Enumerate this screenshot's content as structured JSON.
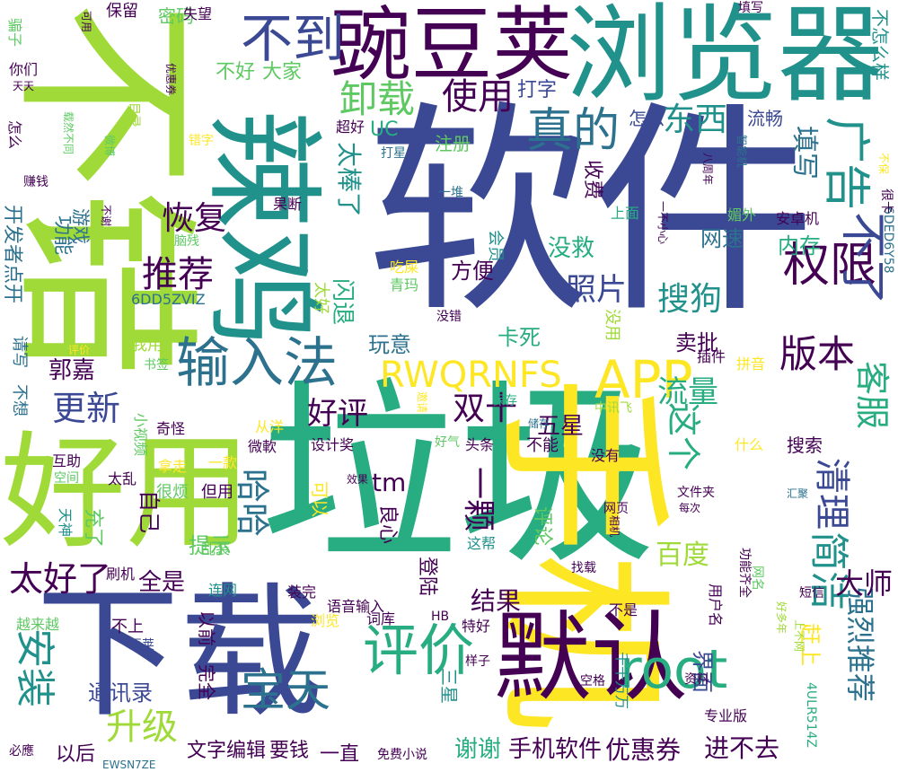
{
  "palette": {
    "dark_purple": "#440154",
    "indigo": "#3b4994",
    "steel_blue": "#2c728e",
    "teal": "#21918c",
    "sea_green": "#27ad81",
    "green": "#5ec962",
    "yellow_green": "#a0da39",
    "yellow": "#fde725"
  },
  "words": [
    {
      "text": "软件",
      "c": "indigo"
    },
    {
      "text": "垃圾",
      "c": "sea_green"
    },
    {
      "text": "手机",
      "c": "yellow"
    },
    {
      "text": "不错",
      "c": "yellow_green"
    },
    {
      "text": "下载",
      "c": "indigo"
    },
    {
      "text": "好用",
      "c": "yellow_green"
    },
    {
      "text": "浏览器",
      "c": "teal"
    },
    {
      "text": "豌豆荚",
      "c": "dark_purple"
    },
    {
      "text": "辣鸡",
      "c": "teal"
    },
    {
      "text": "默认",
      "c": "dark_purple"
    },
    {
      "text": "不到",
      "c": "indigo"
    },
    {
      "text": "评价",
      "c": "sea_green"
    },
    {
      "text": "输入法",
      "c": "steel_blue"
    },
    {
      "text": "宝天",
      "c": "steel_blue"
    },
    {
      "text": "root",
      "c": "sea_green"
    },
    {
      "text": "APP",
      "c": "yellow"
    },
    {
      "text": "RWQRNFS",
      "c": "yellow"
    },
    {
      "text": "权限",
      "c": "dark_purple"
    },
    {
      "text": "不了",
      "c": "indigo"
    },
    {
      "text": "广告",
      "c": "teal"
    },
    {
      "text": "真的",
      "c": "steel_blue"
    },
    {
      "text": "卸载",
      "c": "green"
    },
    {
      "text": "使用",
      "c": "dark_purple"
    },
    {
      "text": "版本",
      "c": "dark_purple"
    },
    {
      "text": "安装",
      "c": "teal"
    },
    {
      "text": "推荐",
      "c": "dark_purple"
    },
    {
      "text": "更新",
      "c": "indigo"
    },
    {
      "text": "太好了",
      "c": "dark_purple"
    },
    {
      "text": "清理",
      "c": "indigo"
    },
    {
      "text": "简洁",
      "c": "teal"
    },
    {
      "text": "强烈推荐",
      "c": "steel_blue"
    },
    {
      "text": "客服",
      "c": "sea_green"
    },
    {
      "text": "这个",
      "c": "sea_green"
    },
    {
      "text": "搜狗",
      "c": "teal"
    },
    {
      "text": "恢复",
      "c": "dark_purple"
    },
    {
      "text": "东西",
      "c": "teal"
    },
    {
      "text": "升级",
      "c": "yellow_green"
    },
    {
      "text": "哈哈",
      "c": "steel_blue"
    },
    {
      "text": "好评",
      "c": "dark_purple"
    },
    {
      "text": "双十",
      "c": "dark_purple"
    },
    {
      "text": "一颗",
      "c": "dark_purple"
    },
    {
      "text": "流量",
      "c": "sea_green"
    },
    {
      "text": "大师",
      "c": "dark_purple"
    },
    {
      "text": "填写",
      "c": "steel_blue"
    },
    {
      "text": "百度",
      "c": "yellow_green"
    },
    {
      "text": "照片",
      "c": "indigo"
    },
    {
      "text": "结果",
      "c": "dark_purple"
    },
    {
      "text": "手机软件",
      "c": "dark_purple"
    },
    {
      "text": "优惠券",
      "c": "dark_purple"
    },
    {
      "text": "进不去",
      "c": "dark_purple"
    },
    {
      "text": "谢谢",
      "c": "sea_green"
    },
    {
      "text": "文字编辑",
      "c": "dark_purple"
    },
    {
      "text": "要钱",
      "c": "dark_purple"
    },
    {
      "text": "一直",
      "c": "dark_purple"
    },
    {
      "text": "以后",
      "c": "dark_purple"
    },
    {
      "text": "通讯录",
      "c": "indigo"
    },
    {
      "text": "界面",
      "c": "indigo"
    },
    {
      "text": "赶上",
      "c": "yellow"
    },
    {
      "text": "tm",
      "c": "dark_purple"
    },
    {
      "text": "五星",
      "c": "dark_purple"
    },
    {
      "text": "郭嘉",
      "c": "dark_purple"
    },
    {
      "text": "玩意",
      "c": "steel_blue"
    },
    {
      "text": "卖批",
      "c": "dark_purple"
    },
    {
      "text": "方便",
      "c": "dark_purple"
    },
    {
      "text": "没救",
      "c": "sea_green"
    },
    {
      "text": "内存",
      "c": "sea_green"
    },
    {
      "text": "网速",
      "c": "steel_blue"
    },
    {
      "text": "卡死",
      "c": "sea_green"
    },
    {
      "text": "全是",
      "c": "dark_purple"
    },
    {
      "text": "提示",
      "c": "green"
    },
    {
      "text": "自己",
      "c": "dark_purple"
    },
    {
      "text": "UC",
      "c": "sea_green"
    },
    {
      "text": "注册",
      "c": "green"
    },
    {
      "text": "打字",
      "c": "indigo"
    },
    {
      "text": "收费",
      "c": "dark_purple"
    },
    {
      "text": "流畅",
      "c": "indigo"
    },
    {
      "text": "怎么",
      "c": "indigo"
    },
    {
      "text": "超好",
      "c": "dark_purple"
    },
    {
      "text": "不好",
      "c": "green"
    },
    {
      "text": "大家",
      "c": "green"
    },
    {
      "text": "密码",
      "c": "green"
    },
    {
      "text": "保留",
      "c": "dark_purple"
    },
    {
      "text": "失望",
      "c": "dark_purple"
    },
    {
      "text": "填写",
      "c": "dark_purple"
    },
    {
      "text": "不怎么样",
      "c": "teal"
    },
    {
      "text": "闪退",
      "c": "sea_green"
    },
    {
      "text": "太棒了",
      "c": "teal"
    },
    {
      "text": "功能",
      "c": "steel_blue"
    },
    {
      "text": "游戏",
      "c": "steel_blue"
    },
    {
      "text": "开发者",
      "c": "steel_blue"
    },
    {
      "text": "点开",
      "c": "steel_blue"
    },
    {
      "text": "6DD5ZVIZ",
      "c": "steel_blue"
    },
    {
      "text": "6DED6Y58",
      "c": "steel_blue"
    },
    {
      "text": "安卓机",
      "c": "dark_purple"
    },
    {
      "text": "一堆",
      "c": "steel_blue"
    },
    {
      "text": "果断",
      "c": "dark_purple"
    },
    {
      "text": "上面",
      "c": "sea_green"
    },
    {
      "text": "媚外",
      "c": "green"
    },
    {
      "text": "会员",
      "c": "teal"
    },
    {
      "text": "吃屎",
      "c": "yellow"
    },
    {
      "text": "青玛",
      "c": "green"
    },
    {
      "text": "太好",
      "c": "yellow_green"
    },
    {
      "text": "没用",
      "c": "yellow_green"
    },
    {
      "text": "没错",
      "c": "dark_purple"
    },
    {
      "text": "插件",
      "c": "dark_purple"
    },
    {
      "text": "拼音",
      "c": "yellow"
    },
    {
      "text": "我用",
      "c": "yellow_green"
    },
    {
      "text": "书签",
      "c": "green"
    },
    {
      "text": "不想",
      "c": "steel_blue"
    },
    {
      "text": "请写",
      "c": "steel_blue"
    },
    {
      "text": "评价",
      "c": "yellow"
    },
    {
      "text": "奇怪",
      "c": "dark_purple"
    },
    {
      "text": "微軟",
      "c": "dark_purple"
    },
    {
      "text": "从洋",
      "c": "yellow"
    },
    {
      "text": "小视频",
      "c": "green"
    },
    {
      "text": "设计奖",
      "c": "dark_purple"
    },
    {
      "text": "保存",
      "c": "sea_green"
    },
    {
      "text": "储存",
      "c": "steel_blue"
    },
    {
      "text": "邀请",
      "c": "yellow"
    },
    {
      "text": "中讯飞",
      "c": "yellow_green"
    },
    {
      "text": "什么",
      "c": "yellow"
    },
    {
      "text": "搜索",
      "c": "dark_purple"
    },
    {
      "text": "好气",
      "c": "green"
    },
    {
      "text": "头条",
      "c": "dark_purple"
    },
    {
      "text": "不能",
      "c": "dark_purple"
    },
    {
      "text": "没有",
      "c": "dark_purple"
    },
    {
      "text": "互助",
      "c": "dark_purple"
    },
    {
      "text": "空间",
      "c": "green"
    },
    {
      "text": "太乱",
      "c": "dark_purple"
    },
    {
      "text": "拿走",
      "c": "yellow"
    },
    {
      "text": "一款",
      "c": "yellow"
    },
    {
      "text": "很烦",
      "c": "green"
    },
    {
      "text": "但用",
      "c": "dark_purple"
    },
    {
      "text": "效果",
      "c": "dark_purple"
    },
    {
      "text": "可以",
      "c": "yellow"
    },
    {
      "text": "良心",
      "c": "dark_purple"
    },
    {
      "text": "登陆",
      "c": "dark_purple"
    },
    {
      "text": "这帮",
      "c": "teal"
    },
    {
      "text": "评论",
      "c": "green"
    },
    {
      "text": "充了",
      "c": "green"
    },
    {
      "text": "乱装",
      "c": "green"
    },
    {
      "text": "天神",
      "c": "teal"
    },
    {
      "text": "刷机",
      "c": "dark_purple"
    },
    {
      "text": "连网",
      "c": "teal"
    },
    {
      "text": "装完",
      "c": "dark_purple"
    },
    {
      "text": "语音输入",
      "c": "dark_purple"
    },
    {
      "text": "越来越",
      "c": "green"
    },
    {
      "text": "浏览",
      "c": "yellow"
    },
    {
      "text": "词库",
      "c": "dark_purple"
    },
    {
      "text": "HB",
      "c": "dark_purple"
    },
    {
      "text": "特好",
      "c": "dark_purple"
    },
    {
      "text": "不上",
      "c": "dark_purple"
    },
    {
      "text": "豆荚",
      "c": "indigo"
    },
    {
      "text": "以前",
      "c": "dark_purple"
    },
    {
      "text": "完全",
      "c": "dark_purple"
    },
    {
      "text": "三星",
      "c": "teal"
    },
    {
      "text": "样子",
      "c": "dark_purple"
    },
    {
      "text": "空格",
      "c": "dark_purple"
    },
    {
      "text": "千千万万",
      "c": "teal"
    },
    {
      "text": "资料",
      "c": "dark_purple"
    },
    {
      "text": "专业版",
      "c": "dark_purple"
    },
    {
      "text": "4ULR514Z",
      "c": "sea_green"
    },
    {
      "text": "必應",
      "c": "dark_purple"
    },
    {
      "text": "EWSN7ZE",
      "c": "steel_blue"
    },
    {
      "text": "免费小说",
      "c": "dark_purple"
    },
    {
      "text": "不是",
      "c": "dark_purple"
    },
    {
      "text": "用户名",
      "c": "dark_purple"
    },
    {
      "text": "功能齐全",
      "c": "dark_purple"
    },
    {
      "text": "好多年",
      "c": "yellow_green"
    },
    {
      "text": "上不网",
      "c": "yellow_green"
    },
    {
      "text": "短信",
      "c": "dark_purple"
    },
    {
      "text": "网名",
      "c": "green"
    },
    {
      "text": "找载",
      "c": "dark_purple"
    },
    {
      "text": "相机",
      "c": "dark_purple"
    },
    {
      "text": "网页",
      "c": "dark_purple"
    },
    {
      "text": "文件夹",
      "c": "dark_purple"
    },
    {
      "text": "每次",
      "c": "dark_purple"
    },
    {
      "text": "汇聚",
      "c": "steel_blue"
    },
    {
      "text": "很卡",
      "c": "dark_purple"
    },
    {
      "text": "不保",
      "c": "yellow"
    },
    {
      "text": "智能机",
      "c": "steel_blue"
    },
    {
      "text": "八周年",
      "c": "dark_purple"
    },
    {
      "text": "一不小心",
      "c": "dark_purple"
    },
    {
      "text": "脑残",
      "c": "green"
    },
    {
      "text": "不谢",
      "c": "dark_purple"
    },
    {
      "text": "赚钱",
      "c": "dark_purple"
    },
    {
      "text": "怎么",
      "c": "dark_purple"
    },
    {
      "text": "载然不同",
      "c": "green"
    },
    {
      "text": "错字",
      "c": "yellow"
    },
    {
      "text": "微博",
      "c": "green"
    },
    {
      "text": "打星",
      "c": "steel_blue"
    },
    {
      "text": "优惠券",
      "c": "dark_purple"
    },
    {
      "text": "很目录",
      "c": "yellow_green"
    },
    {
      "text": "你们",
      "c": "dark_purple"
    },
    {
      "text": "天天",
      "c": "dark_purple"
    },
    {
      "text": "骗子",
      "c": "green"
    },
    {
      "text": "可用",
      "c": "dark_purple"
    }
  ]
}
